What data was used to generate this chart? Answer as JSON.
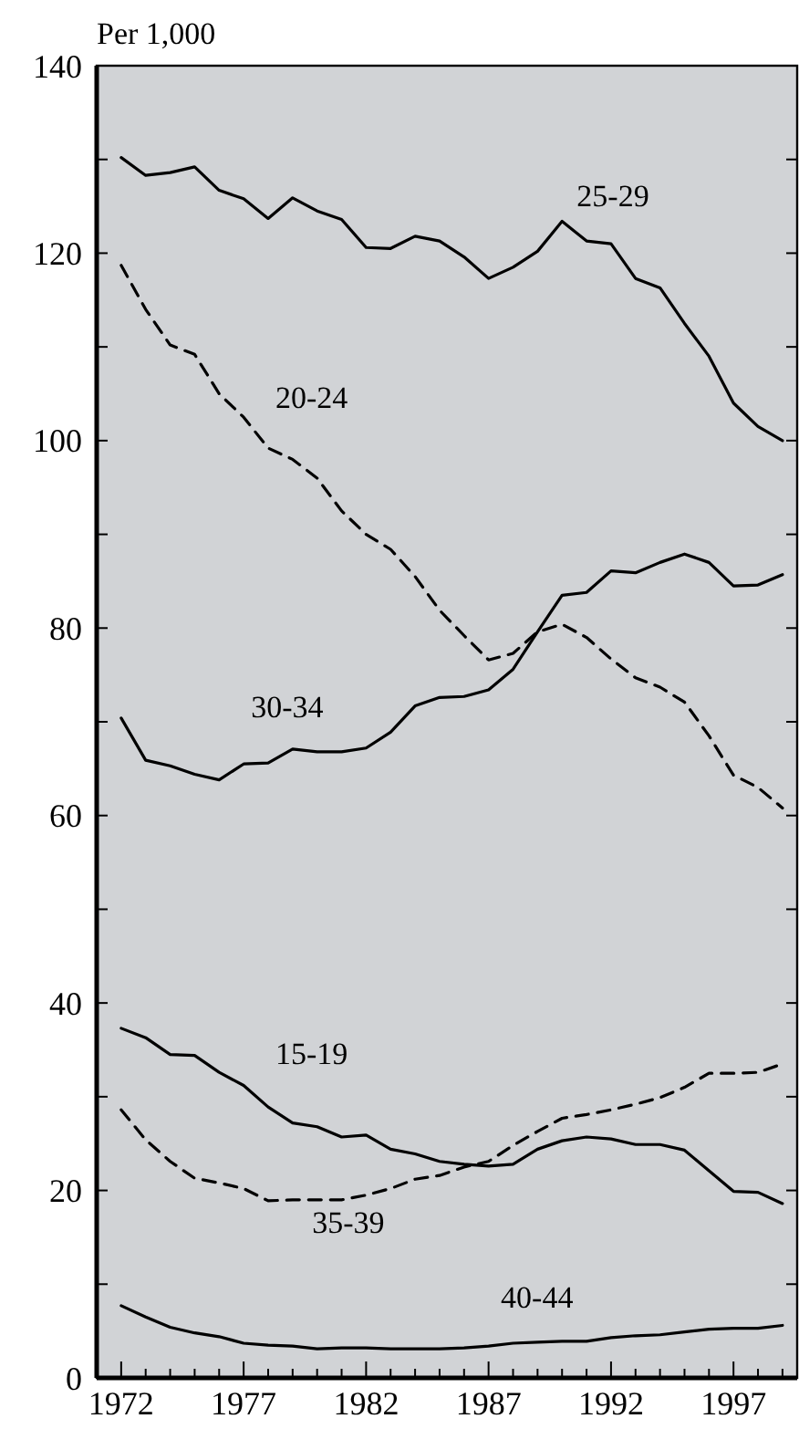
{
  "chart_data": {
    "type": "line",
    "ylabel": "Per 1,000",
    "x": [
      1972,
      1973,
      1974,
      1975,
      1976,
      1977,
      1978,
      1979,
      1980,
      1981,
      1982,
      1983,
      1984,
      1985,
      1986,
      1987,
      1988,
      1989,
      1990,
      1991,
      1992,
      1993,
      1994,
      1995,
      1996,
      1997,
      1998,
      1999
    ],
    "xlim": [
      1971,
      1999.6
    ],
    "ylim": [
      0,
      140
    ],
    "xticks": [
      {
        "value": 1971,
        "label": null
      },
      1972,
      {
        "value": 1973,
        "label": null
      },
      {
        "value": 1974,
        "label": null
      },
      {
        "value": 1975,
        "label": null
      },
      {
        "value": 1976,
        "label": null
      },
      1977,
      {
        "value": 1978,
        "label": null
      },
      {
        "value": 1979,
        "label": null
      },
      {
        "value": 1980,
        "label": null
      },
      {
        "value": 1981,
        "label": null
      },
      1982,
      {
        "value": 1983,
        "label": null
      },
      {
        "value": 1984,
        "label": null
      },
      {
        "value": 1985,
        "label": null
      },
      {
        "value": 1986,
        "label": null
      },
      1987,
      {
        "value": 1988,
        "label": null
      },
      {
        "value": 1989,
        "label": null
      },
      {
        "value": 1990,
        "label": null
      },
      {
        "value": 1991,
        "label": null
      },
      1992,
      {
        "value": 1993,
        "label": null
      },
      {
        "value": 1994,
        "label": null
      },
      {
        "value": 1995,
        "label": null
      },
      {
        "value": 1996,
        "label": null
      },
      1997,
      {
        "value": 1998,
        "label": null
      },
      {
        "value": 1999,
        "label": null
      }
    ],
    "yticks": [
      0,
      {
        "value": 10,
        "label": null
      },
      20,
      {
        "value": 30,
        "label": null
      },
      40,
      {
        "value": 50,
        "label": null
      },
      60,
      {
        "value": 70,
        "label": null
      },
      80,
      {
        "value": 90,
        "label": null
      },
      100,
      {
        "value": 110,
        "label": null
      },
      120,
      {
        "value": 130,
        "label": null
      },
      140
    ],
    "grid": false,
    "legend": false,
    "marker": "none",
    "series": [
      {
        "name": "25-29",
        "color": "#000000",
        "line_style": "solid",
        "values": [
          130.2,
          128.3,
          128.6,
          129.2,
          126.7,
          125.8,
          123.7,
          125.9,
          124.5,
          123.6,
          120.6,
          120.5,
          121.8,
          121.3,
          119.6,
          117.3,
          118.5,
          120.2,
          123.4,
          121.3,
          121.0,
          117.3,
          116.3,
          112.5,
          109.0,
          104.0,
          101.5,
          100.0
        ]
      },
      {
        "name": "20-24",
        "color": "#000000",
        "line_style": "dashed",
        "values": [
          118.7,
          114.0,
          110.2,
          109.2,
          105.0,
          102.5,
          99.2,
          98.0,
          96.0,
          92.5,
          90.0,
          88.4,
          85.5,
          81.9,
          79.2,
          76.6,
          77.3,
          79.6,
          80.4,
          79.0,
          76.7,
          74.7,
          73.7,
          72.1,
          68.5,
          64.3,
          63.0,
          60.8
        ]
      },
      {
        "name": "30-34",
        "color": "#000000",
        "line_style": "solid",
        "values": [
          70.4,
          65.9,
          65.3,
          64.4,
          63.8,
          65.5,
          65.6,
          67.1,
          66.8,
          66.8,
          67.2,
          68.9,
          71.7,
          72.6,
          72.7,
          73.4,
          75.6,
          79.6,
          83.5,
          83.8,
          86.1,
          85.9,
          87.0,
          87.9,
          87.0,
          84.5,
          84.6,
          85.7
        ]
      },
      {
        "name": "15-19",
        "color": "#000000",
        "line_style": "solid",
        "values": [
          37.3,
          36.3,
          34.5,
          34.4,
          32.6,
          31.2,
          28.9,
          27.2,
          26.8,
          25.7,
          25.9,
          24.4,
          23.9,
          23.1,
          22.8,
          22.6,
          22.8,
          24.4,
          25.3,
          25.7,
          25.5,
          24.9,
          24.9,
          24.3,
          22.1,
          19.9,
          19.8,
          18.6
        ]
      },
      {
        "name": "35-39",
        "color": "#000000",
        "line_style": "dashed",
        "values": [
          28.6,
          25.4,
          23.1,
          21.3,
          20.8,
          20.2,
          18.9,
          19.0,
          19.0,
          19.0,
          19.5,
          20.2,
          21.2,
          21.6,
          22.5,
          23.1,
          24.8,
          26.3,
          27.7,
          28.1,
          28.6,
          29.2,
          29.9,
          31.0,
          32.5,
          32.5,
          32.6,
          33.5
        ]
      },
      {
        "name": "40-44",
        "color": "#000000",
        "line_style": "solid",
        "values": [
          7.7,
          6.5,
          5.4,
          4.8,
          4.4,
          3.7,
          3.5,
          3.4,
          3.1,
          3.2,
          3.2,
          3.1,
          3.1,
          3.1,
          3.2,
          3.4,
          3.7,
          3.8,
          3.9,
          3.9,
          4.3,
          4.5,
          4.6,
          4.9,
          5.2,
          5.3,
          5.3,
          5.6
        ]
      }
    ]
  }
}
